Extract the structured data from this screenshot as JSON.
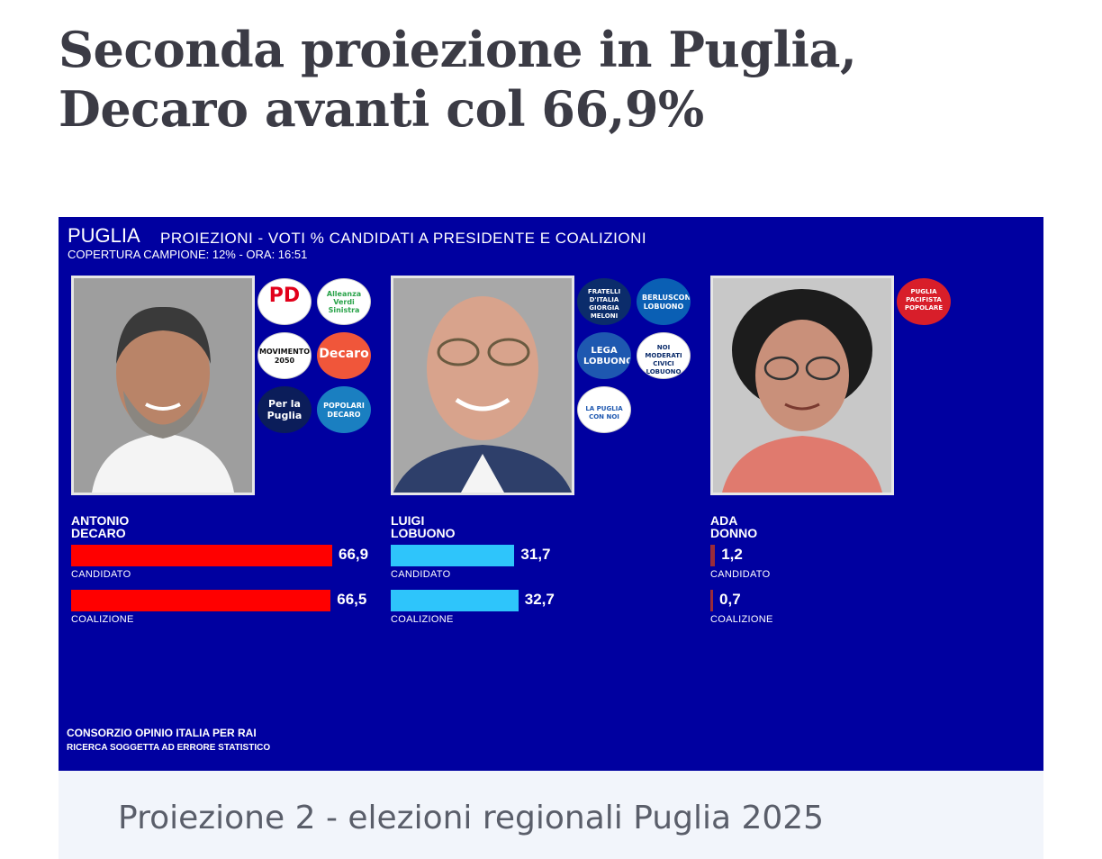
{
  "headline": "Seconda proiezione in Puglia, Decaro avanti col 66,9%",
  "caption": "Proiezione 2 - elezioni regionali Puglia 2025",
  "graphic": {
    "region": "PUGLIA",
    "subtitle": "PROIEZIONI - VOTI % CANDIDATI A PRESIDENTE E COALIZIONI",
    "coverage": "COPERTURA CAMPIONE: 12%  - ORA: 16:51",
    "footer_line1": "CONSORZIO OPINIO ITALIA PER RAI",
    "footer_line2": "RICERCA SOGGETTA AD ERRORE STATISTICO",
    "logos": {
      "pd": "PD",
      "avs": "Alleanza Verdi Sinistra",
      "m5s": "MOVIMENTO 2050",
      "decaro": "Decaro",
      "per_la_puglia": "Per la Puglia",
      "popolari": "POPOLARI DECARO",
      "fdi": "FRATELLI D'ITALIA GIORGIA MELONI",
      "fi": "BERLUSCONI LOBUONO",
      "lega": "LEGA LOBUONO",
      "noi_moderati": "NOI MODERATI CIVICI LOBUONO",
      "udc": "LA PUGLIA CON NOI",
      "pacifista": "PUGLIA PACIFISTA POPOLARE"
    }
  },
  "chart_data": {
    "type": "bar",
    "categories": [
      "CANDIDATO",
      "COALIZIONE"
    ],
    "xlim": [
      0,
      100
    ],
    "series": [
      {
        "name_line1": "ANTONIO",
        "name_line2": "DECARO",
        "values": [
          66.9,
          66.5
        ],
        "value_labels": [
          "66,9",
          "66,5"
        ],
        "color": "#ff0000"
      },
      {
        "name_line1": "LUIGI",
        "name_line2": "LOBUONO",
        "values": [
          31.7,
          32.7
        ],
        "value_labels": [
          "31,7",
          "32,7"
        ],
        "color": "#2ec5fb"
      },
      {
        "name_line1": "ADA",
        "name_line2": "DONNO",
        "values": [
          1.2,
          0.7
        ],
        "value_labels": [
          "1,2",
          "0,7"
        ],
        "color": "#9b2b3a"
      }
    ]
  }
}
